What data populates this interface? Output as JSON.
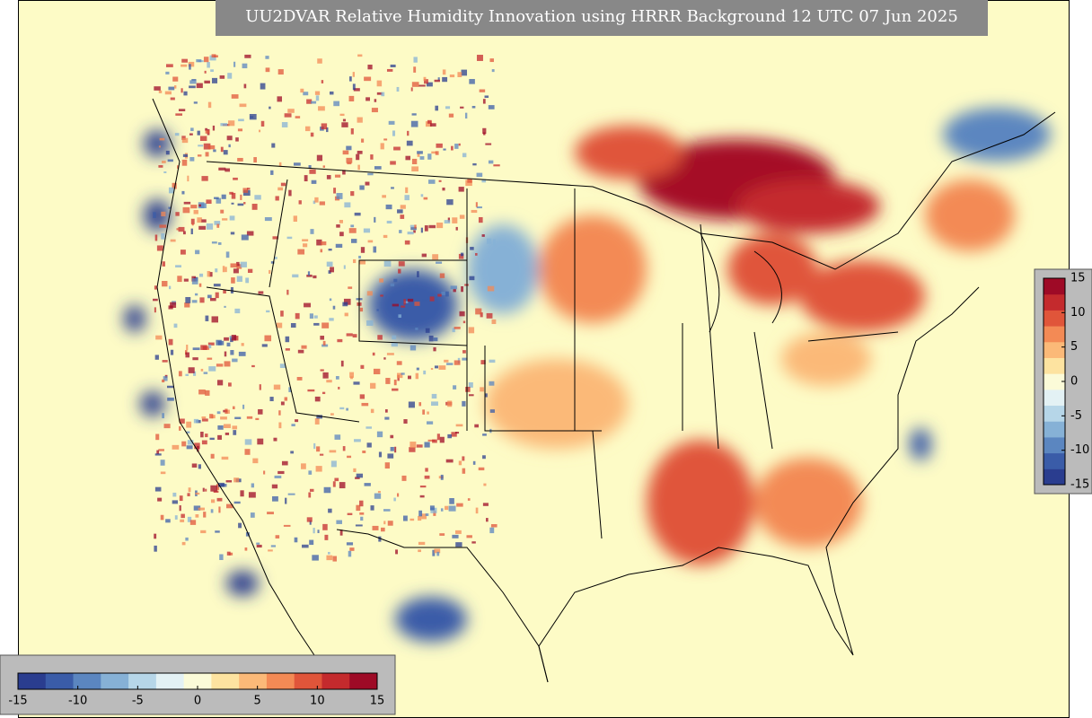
{
  "title": "UU2DVAR Relative Humidity Innovation using HRRR Background 12 UTC 07 Jun 2025",
  "colorbar": {
    "range": [
      -15,
      15
    ],
    "ticks": [
      -15,
      -10,
      -5,
      0,
      5,
      10,
      15
    ],
    "colors": [
      "#2a3d8f",
      "#3a5ca8",
      "#5b86c0",
      "#86b1d6",
      "#b6d6e8",
      "#e3f1f4",
      "#fbfbd8",
      "#fde3a0",
      "#fbb978",
      "#f38a55",
      "#e0553a",
      "#c42a2d",
      "#9e0a26"
    ]
  }
}
